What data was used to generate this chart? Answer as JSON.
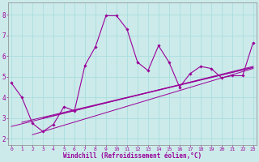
{
  "xlabel": "Windchill (Refroidissement éolien,°C)",
  "bg_color": "#cceaea",
  "line_color": "#990099",
  "grid_color": "#aadddd",
  "x_ticks": [
    0,
    1,
    2,
    3,
    4,
    5,
    6,
    7,
    8,
    9,
    10,
    11,
    12,
    13,
    14,
    15,
    16,
    17,
    18,
    19,
    20,
    21,
    22,
    23
  ],
  "y_ticks": [
    2,
    3,
    4,
    5,
    6,
    7,
    8
  ],
  "xlim": [
    -0.3,
    23.3
  ],
  "ylim": [
    1.7,
    8.6
  ],
  "main_x": [
    0,
    1,
    2,
    3,
    4,
    5,
    6,
    7,
    8,
    9,
    10,
    11,
    12,
    13,
    14,
    15,
    16,
    17,
    18,
    19,
    20,
    21,
    22,
    23
  ],
  "main_y": [
    4.7,
    4.0,
    2.75,
    2.35,
    2.7,
    3.55,
    3.35,
    5.55,
    6.45,
    7.95,
    7.95,
    7.3,
    5.7,
    5.3,
    6.5,
    5.7,
    4.5,
    5.15,
    5.5,
    5.4,
    4.95,
    5.05,
    5.05,
    6.65
  ],
  "trend_lines": [
    {
      "x": [
        0,
        23
      ],
      "y": [
        2.6,
        5.5
      ]
    },
    {
      "x": [
        1,
        23
      ],
      "y": [
        2.8,
        5.45
      ]
    },
    {
      "x": [
        2,
        23
      ],
      "y": [
        2.2,
        5.4
      ]
    },
    {
      "x": [
        3,
        23
      ],
      "y": [
        3.0,
        5.45
      ]
    }
  ]
}
